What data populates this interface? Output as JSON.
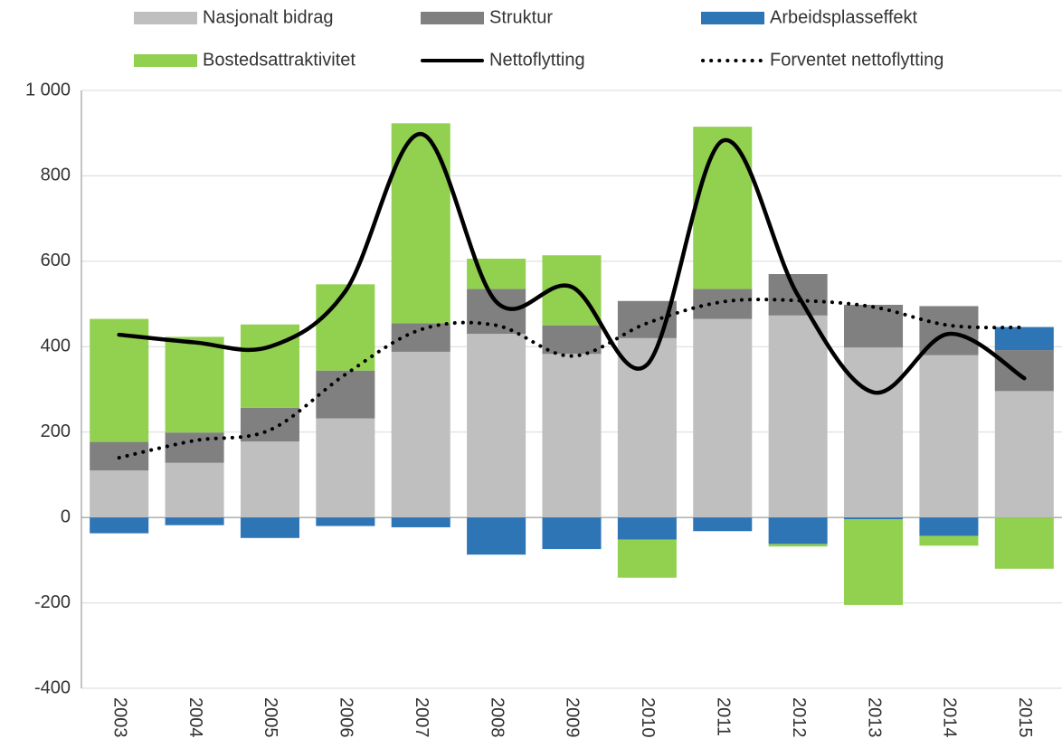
{
  "chart_data": {
    "type": "stacked-bar-line",
    "categories": [
      "2003",
      "2004",
      "2005",
      "2006",
      "2007",
      "2008",
      "2009",
      "2010",
      "2011",
      "2012",
      "2013",
      "2014",
      "2015"
    ],
    "series": [
      {
        "name": "Nasjonalt bidrag",
        "type": "bar",
        "color": "#bfbfbf",
        "values": [
          110,
          128,
          178,
          232,
          388,
          430,
          383,
          420,
          465,
          473,
          398,
          380,
          296
        ]
      },
      {
        "name": "Struktur",
        "type": "bar",
        "color": "#808080",
        "values": [
          67,
          71,
          79,
          112,
          67,
          105,
          67,
          87,
          70,
          97,
          100,
          115,
          96
        ]
      },
      {
        "name": "Arbeidsplasseffekt",
        "type": "bar",
        "color": "#2e75b6",
        "values": [
          -37,
          -18,
          -48,
          -20,
          -23,
          -87,
          -74,
          -52,
          -32,
          -62,
          -4,
          -43,
          54
        ]
      },
      {
        "name": "Bostedsattraktivitet",
        "type": "bar",
        "color": "#92d050",
        "values": [
          288,
          224,
          195,
          202,
          468,
          71,
          164,
          -89,
          380,
          -6,
          -201,
          -23,
          -120
        ]
      },
      {
        "name": "Nettoflytting",
        "type": "line",
        "color": "#000000",
        "dash": "solid",
        "values": [
          428,
          410,
          400,
          530,
          898,
          505,
          540,
          358,
          882,
          520,
          293,
          430,
          326
        ]
      },
      {
        "name": "Forventet nettoflytting",
        "type": "line",
        "color": "#000000",
        "dash": "dotted",
        "values": [
          140,
          180,
          205,
          335,
          440,
          450,
          378,
          455,
          505,
          508,
          493,
          450,
          445
        ]
      }
    ],
    "ylim": [
      -400,
      1000
    ],
    "yticks": [
      -400,
      -200,
      0,
      200,
      400,
      600,
      800,
      {
        "value": 1000,
        "label": "1 000"
      }
    ],
    "grid": true
  }
}
